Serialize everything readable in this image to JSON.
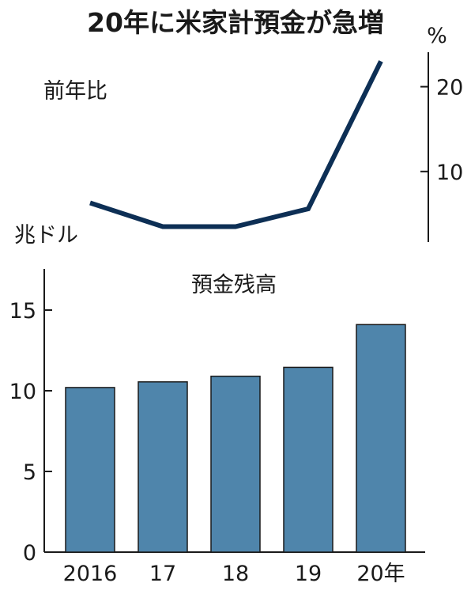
{
  "title": "20年に米家計預金が急増",
  "colors": {
    "line": "#0d2f55",
    "bar": "#4f85ab",
    "bar_edge": "#1a1a1a",
    "axis": "#1a1a1a"
  },
  "chart_data": [
    {
      "type": "line",
      "label": "前年比",
      "unit": "%",
      "x": [
        "2016",
        "17",
        "18",
        "19",
        "20年"
      ],
      "values": [
        6.3,
        3.5,
        3.5,
        5.6,
        23.0
      ],
      "yticks": [
        10,
        20
      ],
      "ylim": [
        0,
        25
      ],
      "grid": false
    },
    {
      "type": "bar",
      "title": "預金残高",
      "unit": "兆ドル",
      "categories": [
        "2016",
        "17",
        "18",
        "19",
        "20年"
      ],
      "values": [
        10.2,
        10.55,
        10.9,
        11.45,
        14.1
      ],
      "yticks": [
        0,
        5,
        10,
        15
      ],
      "ylim": [
        0,
        17
      ],
      "grid": false
    }
  ]
}
